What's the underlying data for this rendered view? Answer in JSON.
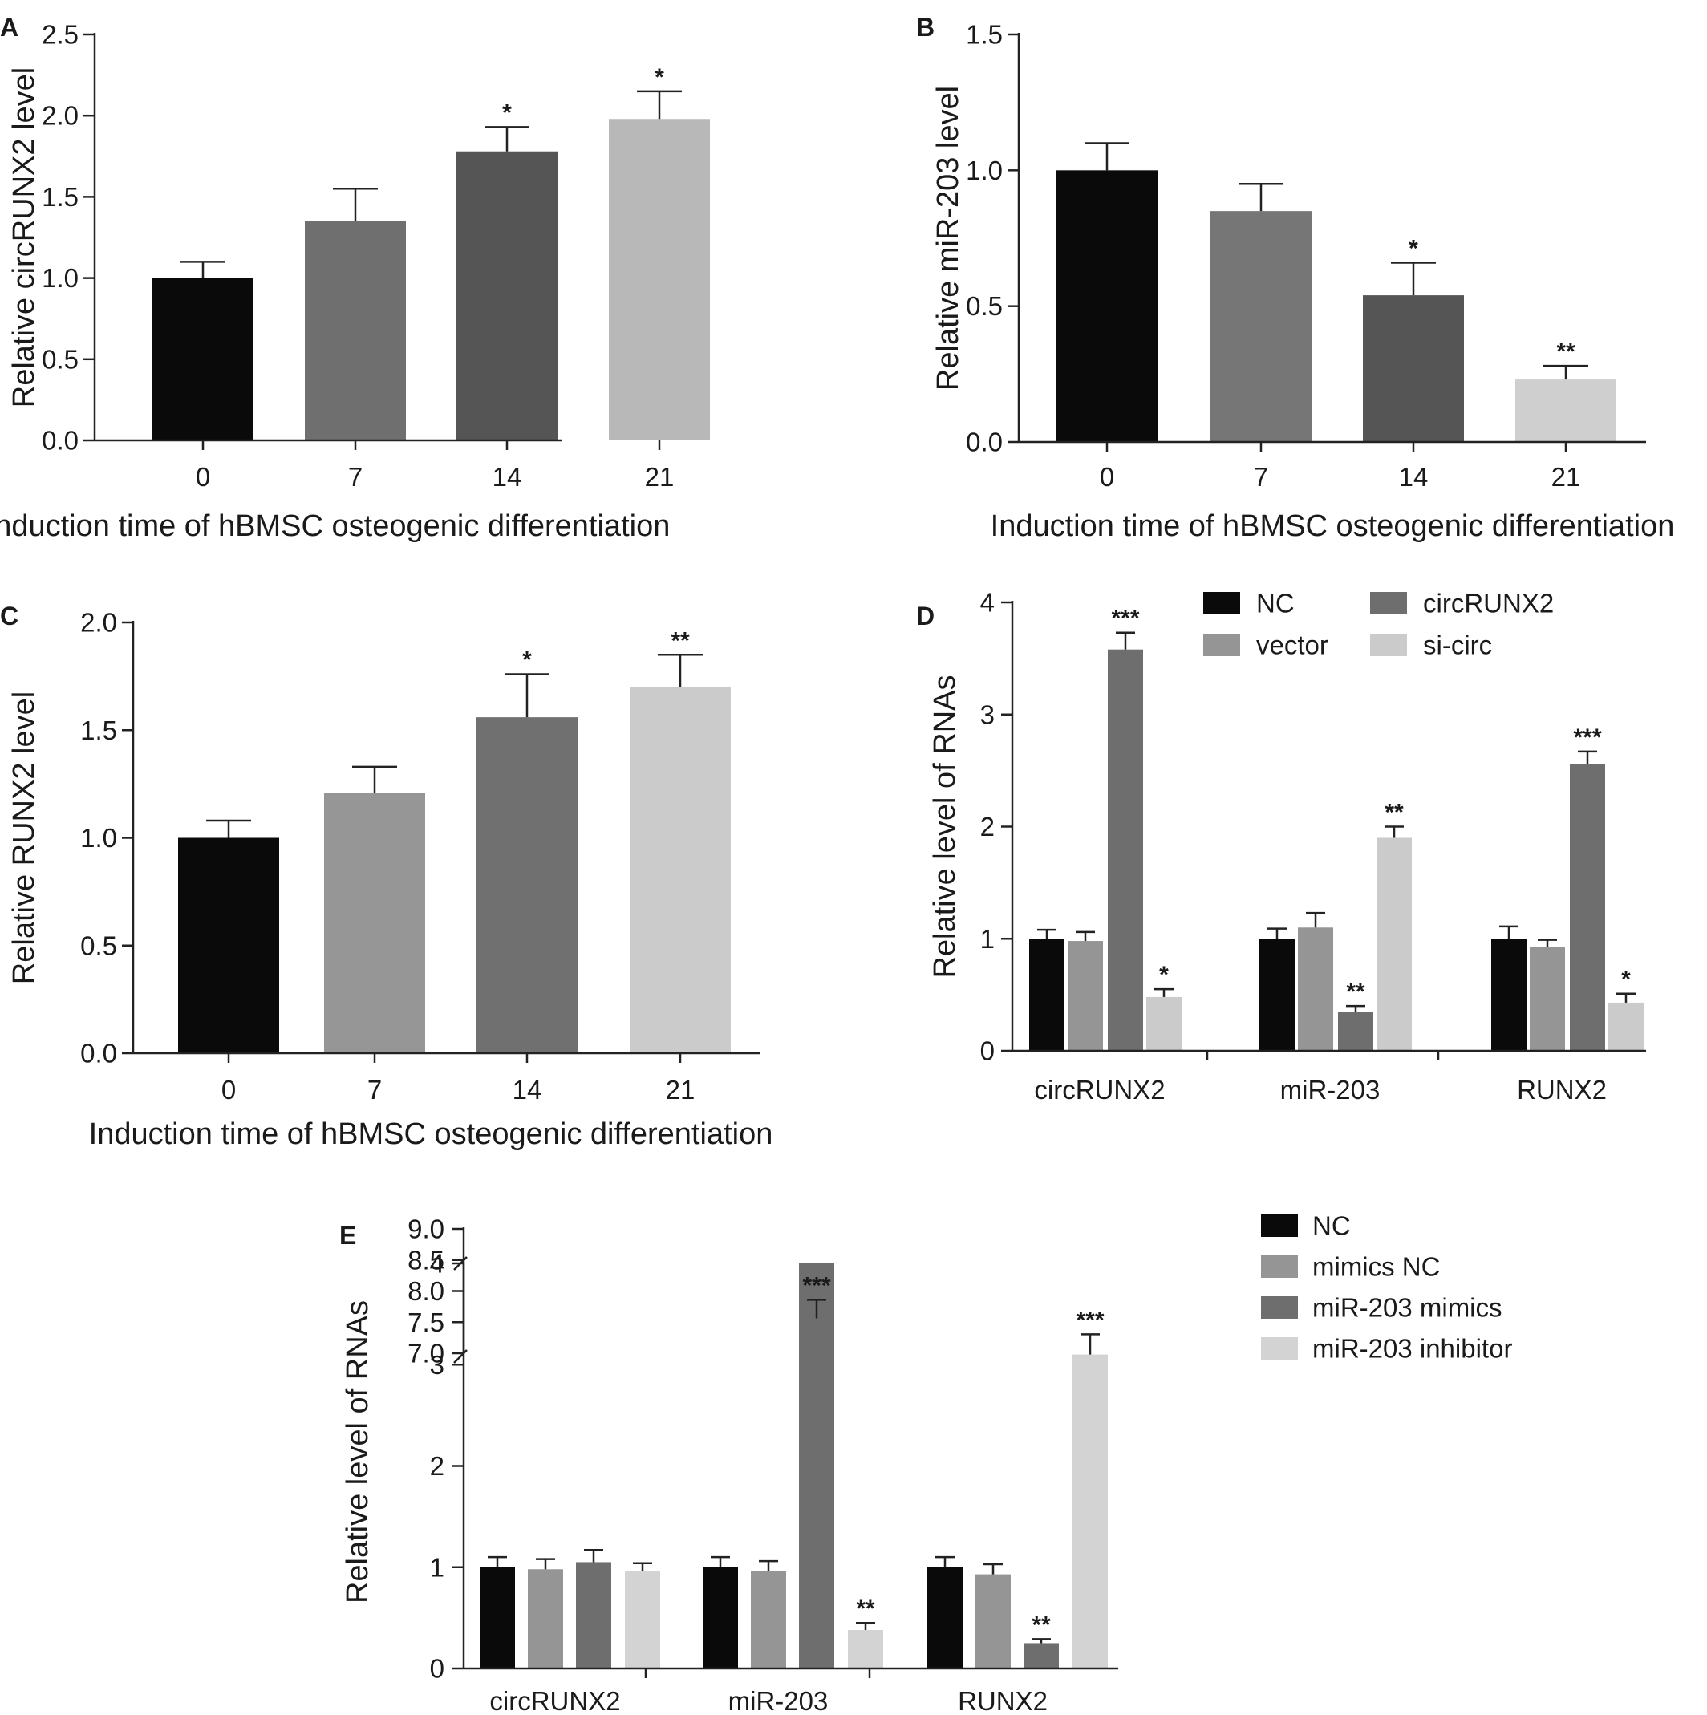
{
  "chart_data": [
    {
      "panel": "A",
      "type": "bar",
      "categories": [
        "0",
        "7",
        "14",
        "21"
      ],
      "values": [
        1.0,
        1.35,
        1.78,
        1.98
      ],
      "errors": [
        0.1,
        0.2,
        0.15,
        0.17
      ],
      "significance": [
        "",
        "",
        "*",
        "*"
      ],
      "colors": [
        "#0a0a0a",
        "#6f6f6f",
        "#555555",
        "#b8b8b8"
      ],
      "ylabel": "Relative circRUNX2 level",
      "xlabel": "Induction time of  hBMSC osteogenic differentiation",
      "ylim": [
        0,
        2.5
      ],
      "yticks": [
        "0.0",
        "0.5",
        "1.0",
        "1.5",
        "2.0",
        "2.5"
      ],
      "grid": false
    },
    {
      "panel": "B",
      "type": "bar",
      "categories": [
        "0",
        "7",
        "14",
        "21"
      ],
      "values": [
        1.0,
        0.85,
        0.54,
        0.23
      ],
      "errors": [
        0.1,
        0.1,
        0.12,
        0.05
      ],
      "significance": [
        "",
        "",
        "*",
        "**"
      ],
      "colors": [
        "#0a0a0a",
        "#767676",
        "#555555",
        "#cfcfcf"
      ],
      "ylabel": "Relative miR-203 level",
      "xlabel": "Induction time of  hBMSC osteogenic differentiation",
      "ylim": [
        0,
        1.5
      ],
      "yticks": [
        "0.0",
        "0.5",
        "1.0",
        "1.5"
      ],
      "grid": false
    },
    {
      "panel": "C",
      "type": "bar",
      "categories": [
        "0",
        "7",
        "14",
        "21"
      ],
      "values": [
        1.0,
        1.21,
        1.56,
        1.7
      ],
      "errors": [
        0.08,
        0.12,
        0.2,
        0.15
      ],
      "significance": [
        "",
        "",
        "*",
        "**"
      ],
      "colors": [
        "#0a0a0a",
        "#969696",
        "#707070",
        "#cbcbcb"
      ],
      "ylabel": "Relative RUNX2 level",
      "xlabel": "Induction time of  hBMSC osteogenic differentiation",
      "ylim": [
        0,
        2.0
      ],
      "yticks": [
        "0.0",
        "0.5",
        "1.0",
        "1.5",
        "2.0"
      ],
      "grid": false
    },
    {
      "panel": "D",
      "type": "bar",
      "categories": [
        "circRUNX2",
        "miR-203",
        "RUNX2"
      ],
      "series": [
        {
          "name": "NC",
          "color": "#0a0a0a",
          "values": [
            1.0,
            1.0,
            1.0
          ],
          "errors": [
            0.08,
            0.09,
            0.11
          ],
          "significance": [
            "",
            "",
            ""
          ]
        },
        {
          "name": "vector",
          "color": "#959595",
          "values": [
            0.98,
            1.1,
            0.93
          ],
          "errors": [
            0.08,
            0.13,
            0.06
          ],
          "significance": [
            "",
            "",
            ""
          ]
        },
        {
          "name": "circRUNX2",
          "color": "#6e6e6e",
          "values": [
            3.58,
            0.35,
            2.56
          ],
          "errors": [
            0.15,
            0.05,
            0.11
          ],
          "significance": [
            "***",
            "**",
            "***"
          ]
        },
        {
          "name": "si-circ",
          "color": "#cbcbcb",
          "values": [
            0.48,
            1.9,
            0.43
          ],
          "errors": [
            0.07,
            0.1,
            0.08
          ],
          "significance": [
            "*",
            "**",
            "*"
          ]
        }
      ],
      "ylabel": "Relative level of RNAs",
      "ylim": [
        0,
        4
      ],
      "yticks": [
        "0",
        "1",
        "2",
        "3",
        "4"
      ],
      "legend": "top",
      "grid": false
    },
    {
      "panel": "E",
      "type": "bar",
      "categories": [
        "circRUNX2",
        "miR-203",
        "RUNX2"
      ],
      "series": [
        {
          "name": "NC",
          "color": "#0a0a0a",
          "values": [
            1.0,
            1.0,
            1.0
          ],
          "errors": [
            0.1,
            0.1,
            0.1
          ],
          "significance": [
            "",
            "",
            ""
          ]
        },
        {
          "name": "mimics NC",
          "color": "#959595",
          "values": [
            0.98,
            0.96,
            0.93
          ],
          "errors": [
            0.1,
            0.1,
            0.1
          ],
          "significance": [
            "",
            "",
            ""
          ]
        },
        {
          "name": "miR-203 mimics",
          "color": "#6e6e6e",
          "values": [
            1.05,
            7.56,
            0.25
          ],
          "errors": [
            0.12,
            0.3,
            0.04
          ],
          "significance": [
            "",
            "***",
            "**"
          ]
        },
        {
          "name": "miR-203 inhibitor",
          "color": "#d3d3d3",
          "values": [
            0.96,
            0.38,
            3.1
          ],
          "errors": [
            0.08,
            0.07,
            0.2
          ],
          "significance": [
            "",
            "**",
            "***"
          ]
        }
      ],
      "ylabel": "Relative level of RNAs",
      "ylim": [
        0,
        9.0
      ],
      "axis_break": [
        4,
        7.0
      ],
      "yticks_lower": [
        "0",
        "1",
        "2",
        "3",
        "4"
      ],
      "yticks_upper": [
        "7.0",
        "7.5",
        "8.0",
        "8.5",
        "9.0"
      ],
      "legend": "right",
      "grid": false
    }
  ]
}
